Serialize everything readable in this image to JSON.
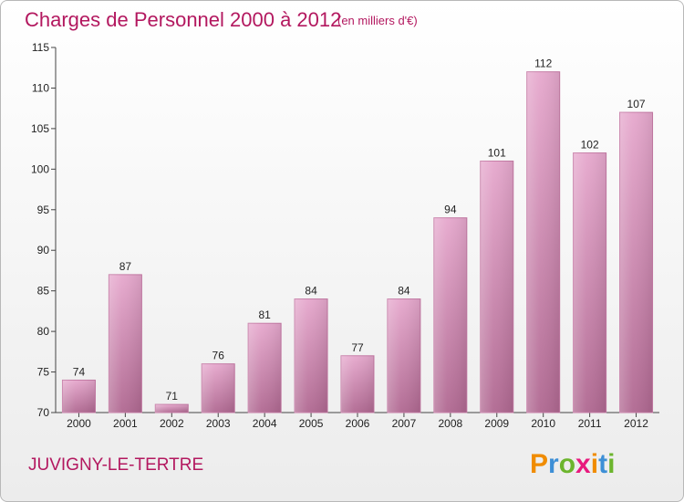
{
  "chart_data": {
    "type": "bar",
    "title": "Charges de Personnel 2000 à 2012",
    "subtitle": "(en milliers d'€)",
    "categories": [
      "2000",
      "2001",
      "2002",
      "2003",
      "2004",
      "2005",
      "2006",
      "2007",
      "2008",
      "2009",
      "2010",
      "2011",
      "2012"
    ],
    "values": [
      74,
      87,
      71,
      76,
      81,
      84,
      77,
      84,
      94,
      101,
      112,
      102,
      107
    ],
    "ylim": [
      70,
      115
    ],
    "yticks": [
      70,
      75,
      80,
      85,
      90,
      95,
      100,
      105,
      110,
      115
    ],
    "grid": false,
    "bar_color": "#d88fb8",
    "xlabel": "",
    "ylabel": ""
  },
  "footer": {
    "town": "JUVIGNY-LE-TERTRE",
    "logo": "Proxiti",
    "logo_colors": [
      "#f08c00",
      "#3d8fd6",
      "#6cb52d",
      "#e8197d",
      "#f08c00",
      "#3d8fd6",
      "#6cb52d"
    ]
  },
  "colors": {
    "title": "#b3185f",
    "axis": "#444444"
  }
}
